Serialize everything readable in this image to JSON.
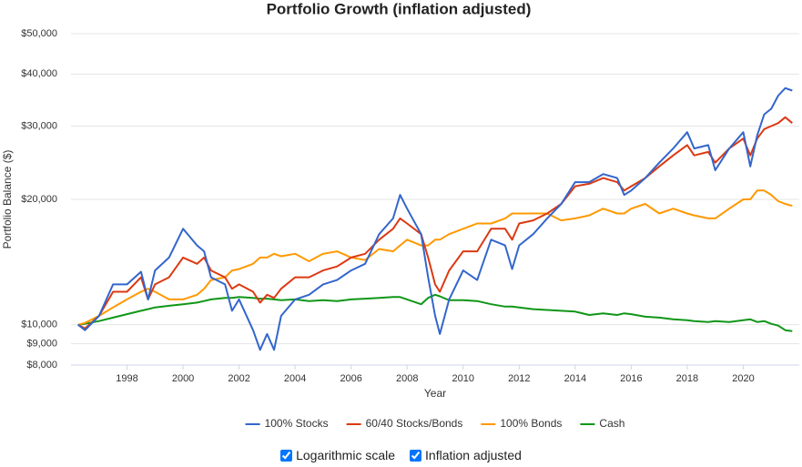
{
  "chart_data": {
    "type": "line",
    "title": "Portfolio Growth (inflation adjusted)",
    "x_label": "Year",
    "y_label": "Portfolio Balance ($)",
    "log_scale": true,
    "grid": true,
    "legend": "bottom",
    "xlim": [
      1996,
      2022
    ],
    "xticks": [
      1998,
      2000,
      2002,
      2004,
      2006,
      2008,
      2010,
      2012,
      2014,
      2016,
      2018,
      2020
    ],
    "ylim": [
      8000,
      50000
    ],
    "yticks": [
      {
        "value": 8000,
        "label": "$8,000"
      },
      {
        "value": 9000,
        "label": "$9,000"
      },
      {
        "value": 10000,
        "label": "$10,000"
      },
      {
        "value": 20000,
        "label": "$20,000"
      },
      {
        "value": 30000,
        "label": "$30,000"
      },
      {
        "value": 40000,
        "label": "$40,000"
      },
      {
        "value": 50000,
        "label": "$50,000"
      }
    ],
    "x": [
      1996.25,
      1996.5,
      1997,
      1997.5,
      1998,
      1998.5,
      1998.75,
      1999,
      1999.5,
      2000,
      2000.5,
      2000.75,
      2001,
      2001.5,
      2001.75,
      2002,
      2002.5,
      2002.75,
      2003,
      2003.25,
      2003.5,
      2004,
      2004.5,
      2005,
      2005.5,
      2006,
      2006.5,
      2007,
      2007.5,
      2007.75,
      2008,
      2008.5,
      2008.75,
      2009,
      2009.17,
      2009.5,
      2010,
      2010.5,
      2011,
      2011.5,
      2011.75,
      2012,
      2012.5,
      2013,
      2013.5,
      2014,
      2014.5,
      2015,
      2015.5,
      2015.75,
      2016,
      2016.5,
      2017,
      2017.5,
      2018,
      2018.25,
      2018.75,
      2019,
      2019.5,
      2020,
      2020.25,
      2020.5,
      2020.75,
      2021,
      2021.25,
      2021.5,
      2021.75
    ],
    "series": [
      {
        "name": "100% Stocks",
        "color": "#3366cc",
        "values": [
          10000,
          9700,
          10500,
          12500,
          12500,
          13400,
          11500,
          13500,
          14500,
          17000,
          15500,
          15000,
          13000,
          12500,
          10800,
          11500,
          9700,
          8700,
          9500,
          8700,
          10500,
          11500,
          11800,
          12500,
          12800,
          13500,
          14000,
          16500,
          18000,
          20500,
          19000,
          16500,
          13000,
          10500,
          9500,
          11500,
          13500,
          12800,
          16000,
          15500,
          13600,
          15500,
          16500,
          18000,
          19500,
          22000,
          22000,
          23000,
          22500,
          20500,
          21000,
          22500,
          24500,
          26500,
          29000,
          26500,
          27000,
          23500,
          26500,
          29000,
          24000,
          28500,
          32000,
          33000,
          35500,
          37000,
          36500
        ]
      },
      {
        "name": "60/40 Stocks/Bonds",
        "color": "#dc3912",
        "values": [
          10000,
          9800,
          10500,
          12000,
          12000,
          13000,
          11500,
          12500,
          13000,
          14500,
          14000,
          14500,
          13500,
          13000,
          12200,
          12500,
          12000,
          11300,
          11800,
          11600,
          12200,
          13000,
          13000,
          13500,
          13800,
          14500,
          14800,
          16000,
          17000,
          18000,
          17500,
          16500,
          14500,
          12500,
          12000,
          13500,
          15000,
          15000,
          17000,
          17000,
          16000,
          17500,
          17800,
          18500,
          19500,
          21500,
          21800,
          22500,
          22000,
          21000,
          21500,
          22500,
          24000,
          25500,
          27000,
          25500,
          26000,
          24500,
          26500,
          28000,
          25500,
          28000,
          29500,
          30000,
          30500,
          31500,
          30500
        ]
      },
      {
        "name": "100% Bonds",
        "color": "#ff9900",
        "values": [
          10000,
          10100,
          10500,
          11000,
          11500,
          12000,
          12200,
          12000,
          11500,
          11500,
          11800,
          12200,
          12800,
          13000,
          13500,
          13600,
          14000,
          14500,
          14500,
          14800,
          14600,
          14800,
          14200,
          14800,
          15000,
          14500,
          14300,
          15200,
          15000,
          15500,
          16000,
          15500,
          15500,
          16000,
          16000,
          16500,
          17000,
          17500,
          17500,
          18000,
          18500,
          18500,
          18500,
          18500,
          17800,
          18000,
          18300,
          19000,
          18500,
          18500,
          19000,
          19500,
          18500,
          19000,
          18500,
          18300,
          18000,
          18000,
          19000,
          20000,
          20000,
          21000,
          21000,
          20500,
          19800,
          19500,
          19300
        ]
      },
      {
        "name": "Cash",
        "color": "#109618",
        "values": [
          10000,
          10050,
          10200,
          10400,
          10600,
          10800,
          10900,
          11000,
          11100,
          11200,
          11300,
          11400,
          11500,
          11600,
          11600,
          11650,
          11600,
          11550,
          11550,
          11500,
          11450,
          11500,
          11400,
          11450,
          11400,
          11500,
          11550,
          11600,
          11650,
          11650,
          11500,
          11200,
          11600,
          11800,
          11700,
          11450,
          11450,
          11400,
          11200,
          11050,
          11050,
          11000,
          10900,
          10850,
          10800,
          10750,
          10550,
          10650,
          10550,
          10650,
          10600,
          10450,
          10400,
          10300,
          10250,
          10200,
          10150,
          10200,
          10150,
          10250,
          10300,
          10150,
          10200,
          10050,
          9950,
          9700,
          9650
        ]
      }
    ]
  },
  "controls": [
    {
      "label": "Logarithmic scale",
      "checked": true
    },
    {
      "label": "Inflation adjusted",
      "checked": true
    }
  ]
}
